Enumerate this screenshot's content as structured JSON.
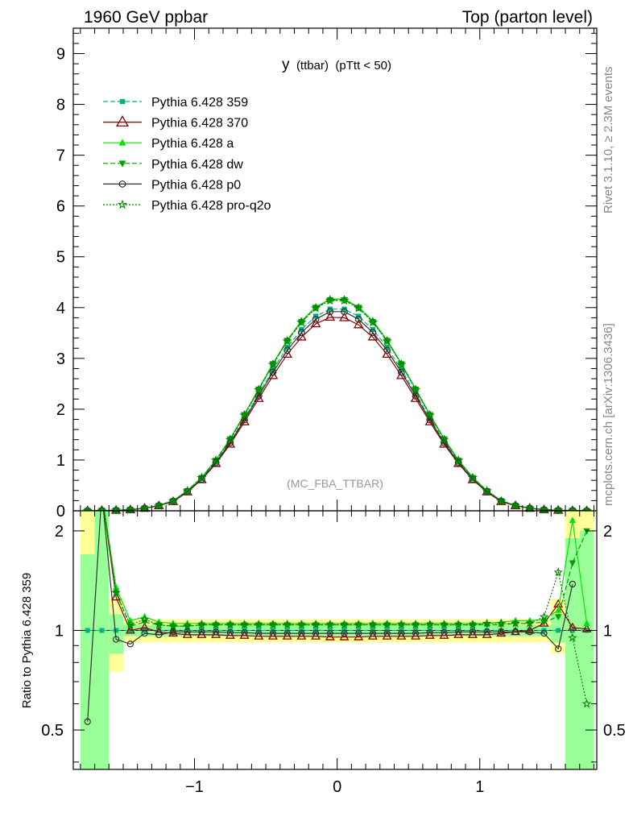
{
  "header": {
    "left": "1960 GeV ppbar",
    "right": "Top (parton level)"
  },
  "side_labels": {
    "rivet": "Rivet 3.1.10, ≥ 2.3M events",
    "mcplots": "mcplots.cern.ch [arXiv:1306.3436]"
  },
  "chart_data": [
    {
      "type": "line",
      "panel": "main",
      "title": "y (ttbar) (pTtt < 50)",
      "title_parts": {
        "var": "y",
        "sub": "(ttbar)",
        "cut": "(pTtt < 50)"
      },
      "analysis_label": "(MC_FBA_TTBAR)",
      "xlim": [
        -1.85,
        1.82
      ],
      "ylim": [
        0,
        9.5
      ],
      "yticks": [
        0,
        1,
        2,
        3,
        4,
        5,
        6,
        7,
        8,
        9
      ],
      "xticks": [
        -1,
        0,
        1
      ],
      "grid": false,
      "legend_position": "top-left",
      "x": [
        -1.75,
        -1.65,
        -1.55,
        -1.45,
        -1.35,
        -1.25,
        -1.15,
        -1.05,
        -0.95,
        -0.85,
        -0.75,
        -0.65,
        -0.55,
        -0.45,
        -0.35,
        -0.25,
        -0.15,
        -0.05,
        0.05,
        0.15,
        0.25,
        0.35,
        0.45,
        0.55,
        0.65,
        0.75,
        0.85,
        0.95,
        1.05,
        1.15,
        1.25,
        1.35,
        1.45,
        1.55,
        1.65,
        1.75
      ],
      "series": [
        {
          "name": "Pythia 6.428 359",
          "color": "#00b482",
          "dash": "6,3",
          "marker": "square",
          "values": [
            0.0,
            0.003,
            0.008,
            0.02,
            0.05,
            0.1,
            0.19,
            0.38,
            0.63,
            0.96,
            1.36,
            1.82,
            2.3,
            2.78,
            3.22,
            3.57,
            3.83,
            3.97,
            3.97,
            3.83,
            3.57,
            3.22,
            2.78,
            2.3,
            1.82,
            1.36,
            0.96,
            0.63,
            0.38,
            0.19,
            0.1,
            0.05,
            0.02,
            0.008,
            0.003,
            0.0
          ]
        },
        {
          "name": "Pythia 6.428 370",
          "color": "#8b0000",
          "dash": "",
          "marker": "triangle-open",
          "values": [
            0.0,
            0.006,
            0.01,
            0.02,
            0.05,
            0.1,
            0.18,
            0.37,
            0.61,
            0.93,
            1.31,
            1.75,
            2.21,
            2.66,
            3.08,
            3.42,
            3.68,
            3.81,
            3.8,
            3.66,
            3.42,
            3.08,
            2.66,
            2.21,
            1.75,
            1.31,
            0.93,
            0.61,
            0.37,
            0.18,
            0.1,
            0.05,
            0.02,
            0.01,
            0.003,
            0.0
          ]
        },
        {
          "name": "Pythia 6.428 a",
          "color": "#00e600",
          "dash": "",
          "marker": "triangle",
          "values": [
            0.0,
            0.004,
            0.01,
            0.02,
            0.05,
            0.11,
            0.2,
            0.4,
            0.66,
            1.0,
            1.42,
            1.9,
            2.4,
            2.9,
            3.36,
            3.74,
            4.01,
            4.17,
            4.17,
            4.01,
            3.74,
            3.36,
            2.9,
            2.4,
            1.9,
            1.42,
            1.0,
            0.66,
            0.4,
            0.2,
            0.11,
            0.05,
            0.022,
            0.01,
            0.006,
            0.0
          ]
        },
        {
          "name": "Pythia 6.428 dw",
          "color": "#00a000",
          "dash": "6,3",
          "marker": "triangle-down",
          "values": [
            0.0,
            0.004,
            0.01,
            0.02,
            0.05,
            0.1,
            0.19,
            0.39,
            0.65,
            0.99,
            1.41,
            1.89,
            2.39,
            2.89,
            3.35,
            3.72,
            4.0,
            4.15,
            4.15,
            4.0,
            3.72,
            3.35,
            2.89,
            2.39,
            1.89,
            1.41,
            0.99,
            0.65,
            0.39,
            0.19,
            0.1,
            0.05,
            0.02,
            0.01,
            0.005,
            0.0
          ]
        },
        {
          "name": "Pythia 6.428 p0",
          "color": "#333333",
          "dash": "",
          "marker": "circle-open",
          "values": [
            0.0,
            0.003,
            0.008,
            0.02,
            0.05,
            0.1,
            0.19,
            0.38,
            0.62,
            0.95,
            1.34,
            1.79,
            2.26,
            2.73,
            3.16,
            3.51,
            3.77,
            3.92,
            3.92,
            3.77,
            3.51,
            3.16,
            2.73,
            2.26,
            1.79,
            1.34,
            0.95,
            0.62,
            0.38,
            0.19,
            0.1,
            0.05,
            0.02,
            0.007,
            0.004,
            0.0
          ]
        },
        {
          "name": "Pythia 6.428 pro-q2o",
          "color": "#008000",
          "dash": "2,2",
          "marker": "star",
          "values": [
            0.0,
            0.004,
            0.01,
            0.02,
            0.05,
            0.1,
            0.19,
            0.39,
            0.65,
            0.99,
            1.4,
            1.88,
            2.38,
            2.88,
            3.34,
            3.71,
            3.99,
            4.14,
            4.14,
            3.99,
            3.71,
            3.34,
            2.88,
            2.38,
            1.88,
            1.4,
            0.99,
            0.65,
            0.39,
            0.19,
            0.1,
            0.05,
            0.02,
            0.012,
            0.004,
            0.0
          ]
        }
      ]
    },
    {
      "type": "line",
      "panel": "ratio",
      "ylabel": "Ratio to Pythia 6.428 359",
      "xlim": [
        -1.85,
        1.82
      ],
      "ylim": [
        0.38,
        2.3
      ],
      "ytick_labels": [
        "0.5",
        "1",
        "2"
      ],
      "ytick_values": [
        0.5,
        1,
        2
      ],
      "xtick_labels": [
        "−1",
        "0",
        "1"
      ],
      "x": [
        -1.75,
        -1.65,
        -1.55,
        -1.45,
        -1.35,
        -1.25,
        -1.15,
        -1.05,
        -0.95,
        -0.85,
        -0.75,
        -0.65,
        -0.55,
        -0.45,
        -0.35,
        -0.25,
        -0.15,
        -0.05,
        0.05,
        0.15,
        0.25,
        0.35,
        0.45,
        0.55,
        0.65,
        0.75,
        0.85,
        0.95,
        1.05,
        1.15,
        1.25,
        1.35,
        1.45,
        1.55,
        1.65,
        1.75
      ],
      "bands": {
        "edges": [
          -1.8,
          -1.7,
          -1.6,
          -1.5,
          1.5,
          1.6,
          1.7,
          1.8
        ],
        "yellow": [
          [
            0.35,
            2.3
          ],
          [
            0.35,
            2.3
          ],
          [
            0.75,
            1.25
          ],
          [
            0.92,
            1.08
          ],
          [
            0.85,
            1.25
          ],
          [
            0.35,
            2.3
          ],
          [
            0.35,
            2.3
          ]
        ],
        "green": [
          [
            0.35,
            1.7
          ],
          [
            0.35,
            2.3
          ],
          [
            0.85,
            1.12
          ],
          [
            0.96,
            1.04
          ],
          [
            0.92,
            1.12
          ],
          [
            0.35,
            1.9
          ],
          [
            0.35,
            2.0
          ]
        ]
      },
      "series": [
        {
          "name": "Pythia 6.428 359",
          "color": "#00b482",
          "dash": "6,3",
          "marker": "square",
          "values": [
            1.0,
            1.0,
            1.0,
            1.0,
            1.0,
            1.0,
            1.0,
            1.0,
            1.0,
            1.0,
            1.0,
            1.0,
            1.0,
            1.0,
            1.0,
            1.0,
            1.0,
            1.0,
            1.0,
            1.0,
            1.0,
            1.0,
            1.0,
            1.0,
            1.0,
            1.0,
            1.0,
            1.0,
            1.0,
            1.0,
            1.0,
            1.0,
            1.0,
            1.0,
            1.0,
            1.0
          ]
        },
        {
          "name": "Pythia 6.428 370",
          "color": "#8b0000",
          "dash": "",
          "marker": "triangle-open",
          "values": [
            null,
            2.6,
            1.26,
            1.0,
            1.02,
            0.99,
            0.98,
            0.97,
            0.97,
            0.97,
            0.965,
            0.965,
            0.96,
            0.96,
            0.96,
            0.96,
            0.96,
            0.955,
            0.955,
            0.955,
            0.96,
            0.96,
            0.96,
            0.96,
            0.965,
            0.965,
            0.97,
            0.97,
            0.97,
            0.98,
            0.99,
            1.0,
            1.05,
            1.2,
            1.02,
            1.01
          ]
        },
        {
          "name": "Pythia 6.428 a",
          "color": "#00e600",
          "dash": "",
          "marker": "triangle",
          "values": [
            null,
            2.6,
            1.35,
            1.07,
            1.1,
            1.06,
            1.05,
            1.05,
            1.05,
            1.05,
            1.05,
            1.05,
            1.05,
            1.05,
            1.05,
            1.05,
            1.05,
            1.05,
            1.05,
            1.05,
            1.05,
            1.05,
            1.05,
            1.05,
            1.05,
            1.05,
            1.05,
            1.05,
            1.05,
            1.06,
            1.07,
            1.07,
            1.08,
            1.15,
            2.15,
            1.05
          ]
        },
        {
          "name": "Pythia 6.428 dw",
          "color": "#00a000",
          "dash": "6,3",
          "marker": "triangle-down",
          "values": [
            null,
            2.6,
            1.3,
            1.03,
            1.06,
            1.04,
            1.03,
            1.03,
            1.04,
            1.04,
            1.04,
            1.04,
            1.04,
            1.04,
            1.04,
            1.04,
            1.04,
            1.04,
            1.04,
            1.04,
            1.04,
            1.04,
            1.04,
            1.04,
            1.04,
            1.04,
            1.04,
            1.04,
            1.04,
            1.04,
            1.05,
            1.05,
            1.06,
            1.1,
            1.6,
            2.0
          ]
        },
        {
          "name": "Pythia 6.428 p0",
          "color": "#333333",
          "dash": "",
          "marker": "circle-open",
          "values": [
            0.53,
            2.6,
            0.94,
            0.91,
            0.98,
            0.97,
            0.99,
            0.99,
            0.99,
            0.99,
            0.985,
            0.985,
            0.98,
            0.98,
            0.98,
            0.98,
            0.98,
            0.98,
            0.98,
            0.98,
            0.98,
            0.98,
            0.98,
            0.98,
            0.985,
            0.985,
            0.99,
            0.99,
            0.99,
            0.99,
            0.99,
            0.99,
            0.98,
            0.88,
            1.38,
            null
          ]
        },
        {
          "name": "Pythia 6.428 pro-q2o",
          "color": "#008000",
          "dash": "2,2",
          "marker": "star",
          "values": [
            null,
            2.6,
            1.3,
            1.04,
            1.08,
            1.04,
            1.03,
            1.03,
            1.04,
            1.04,
            1.04,
            1.04,
            1.04,
            1.04,
            1.04,
            1.04,
            1.04,
            1.04,
            1.04,
            1.04,
            1.04,
            1.04,
            1.04,
            1.04,
            1.04,
            1.04,
            1.04,
            1.04,
            1.05,
            1.05,
            1.05,
            1.05,
            1.1,
            1.5,
            0.95,
            0.6
          ]
        }
      ]
    }
  ]
}
